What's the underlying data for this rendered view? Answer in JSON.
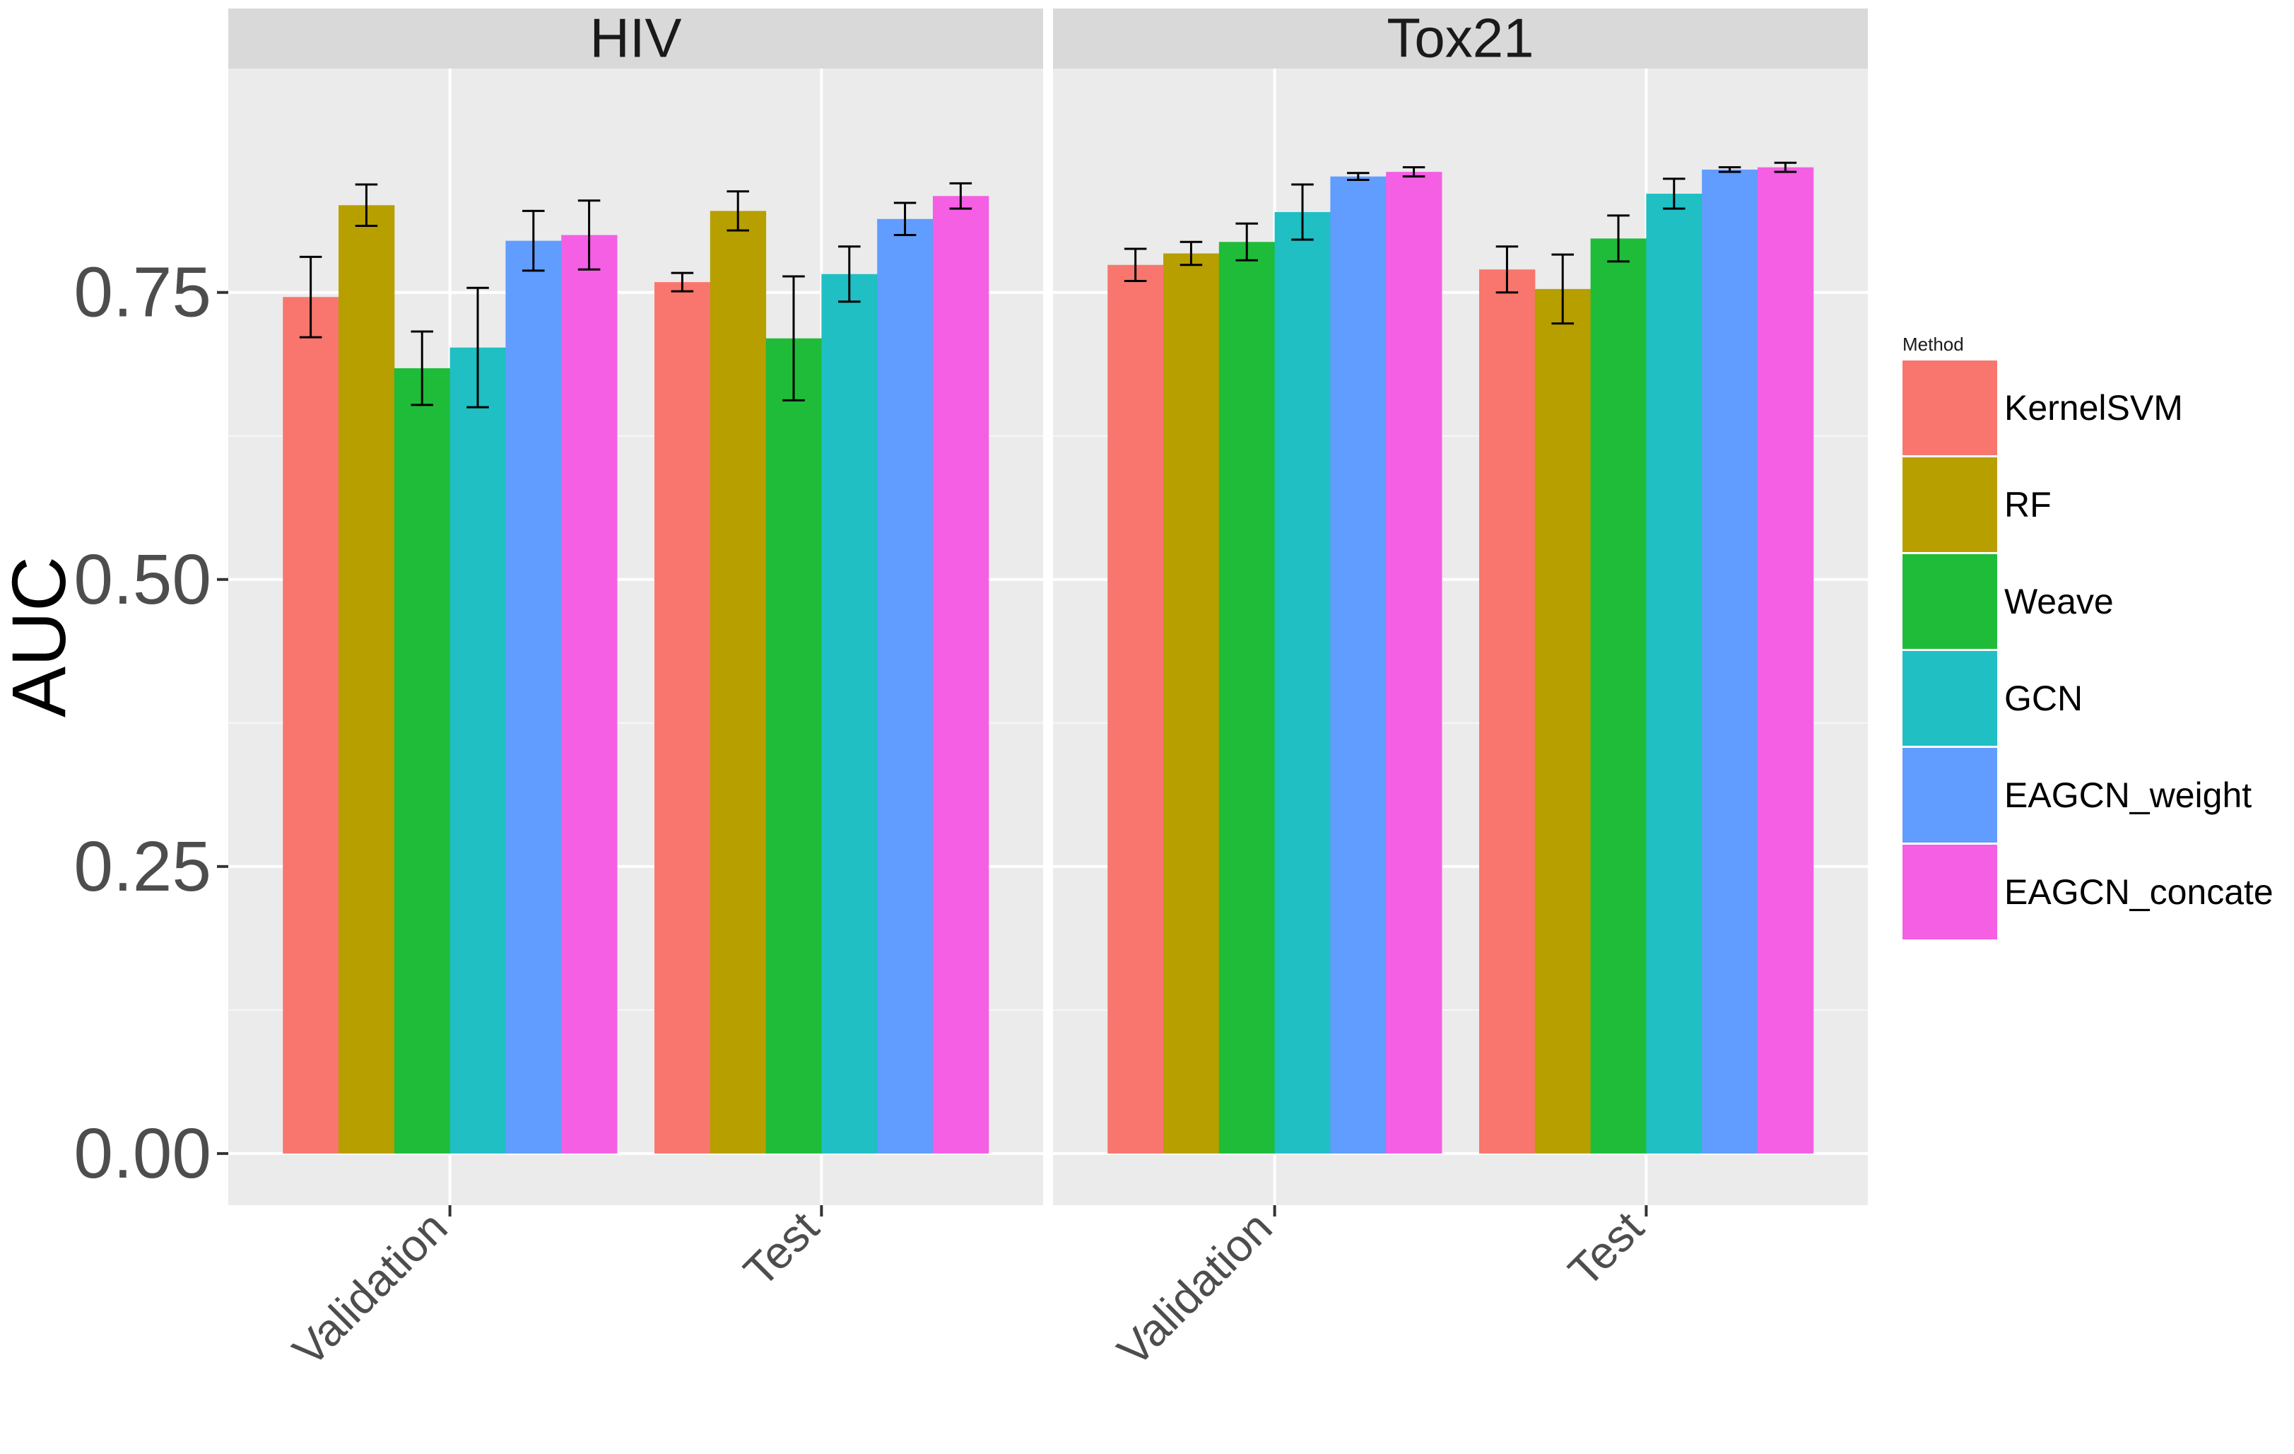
{
  "chart_data": {
    "type": "bar",
    "ylabel": "AUC",
    "xlabel": "",
    "ylim": [
      -0.045,
      0.945
    ],
    "yticks": [
      0.0,
      0.25,
      0.5,
      0.75
    ],
    "ytick_labels": [
      "0.00",
      "0.25",
      "0.50",
      "0.75"
    ],
    "grid": true,
    "legend": {
      "title": "Method",
      "placement": "right"
    },
    "categories": [
      "Validation",
      "Test"
    ],
    "panels": [
      {
        "name": "HIV",
        "series": [
          {
            "name": "KernelSVM",
            "values": [
              0.746,
              0.759
            ],
            "errors": [
              0.035,
              0.008
            ]
          },
          {
            "name": "RF",
            "values": [
              0.826,
              0.821
            ],
            "errors": [
              0.018,
              0.017
            ]
          },
          {
            "name": "Weave",
            "values": [
              0.684,
              0.71
            ],
            "errors": [
              0.032,
              0.054
            ]
          },
          {
            "name": "GCN",
            "values": [
              0.702,
              0.766
            ],
            "errors": [
              0.052,
              0.024
            ]
          },
          {
            "name": "EAGCN_weight",
            "values": [
              0.795,
              0.814
            ],
            "errors": [
              0.026,
              0.014
            ]
          },
          {
            "name": "EAGCN_concate",
            "values": [
              0.8,
              0.834
            ],
            "errors": [
              0.03,
              0.011
            ]
          }
        ]
      },
      {
        "name": "Tox21",
        "series": [
          {
            "name": "KernelSVM",
            "values": [
              0.774,
              0.77
            ],
            "errors": [
              0.014,
              0.02
            ]
          },
          {
            "name": "RF",
            "values": [
              0.784,
              0.753
            ],
            "errors": [
              0.01,
              0.03
            ]
          },
          {
            "name": "Weave",
            "values": [
              0.794,
              0.797
            ],
            "errors": [
              0.016,
              0.02
            ]
          },
          {
            "name": "GCN",
            "values": [
              0.82,
              0.836
            ],
            "errors": [
              0.024,
              0.013
            ]
          },
          {
            "name": "EAGCN_weight",
            "values": [
              0.851,
              0.857
            ],
            "errors": [
              0.003,
              0.002
            ]
          },
          {
            "name": "EAGCN_concate",
            "values": [
              0.855,
              0.859
            ],
            "errors": [
              0.004,
              0.004
            ]
          }
        ]
      }
    ],
    "colors": {
      "KernelSVM": "#F8766D",
      "RF": "#B79F00",
      "Weave": "#1FBC3A",
      "GCN": "#1FBFC4",
      "EAGCN_weight": "#619CFF",
      "EAGCN_concate": "#F45FE3"
    }
  }
}
